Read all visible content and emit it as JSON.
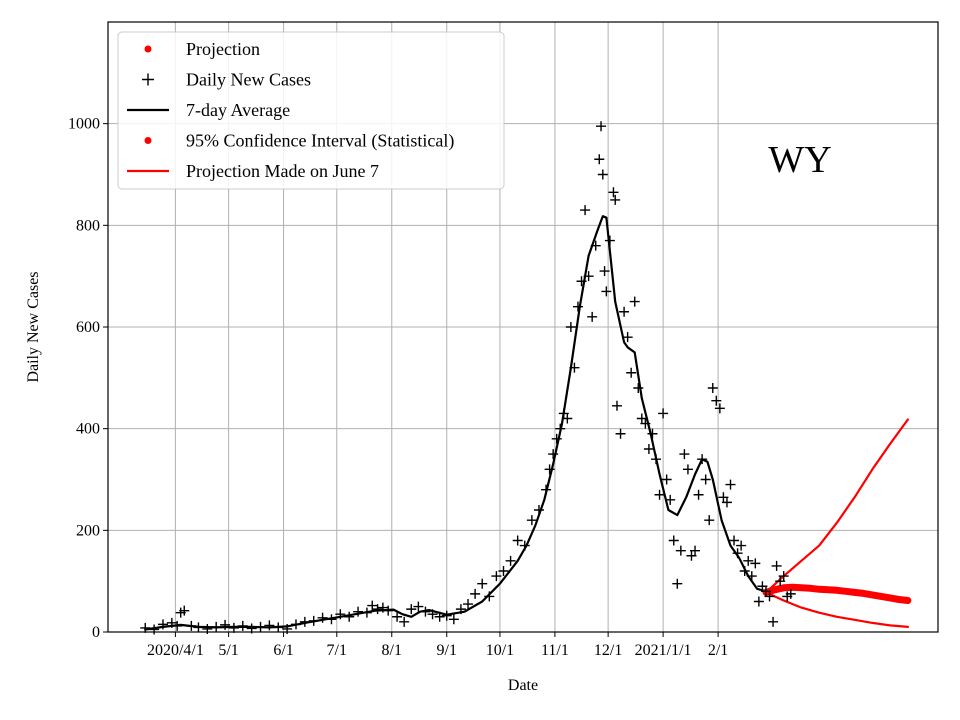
{
  "chart_data": {
    "type": "line",
    "state_label": "WY",
    "xlabel": "Date",
    "ylabel": "Daily New Cases",
    "ylim": [
      0,
      1200
    ],
    "yticks": [
      0,
      200,
      400,
      600,
      800,
      1000
    ],
    "x_domain_days": [
      -21,
      447
    ],
    "x_origin": "2020-03-15",
    "xticks": [
      {
        "day": 17,
        "label": "2020/4/1"
      },
      {
        "day": 47,
        "label": "5/1"
      },
      {
        "day": 78,
        "label": "6/1"
      },
      {
        "day": 108,
        "label": "7/1"
      },
      {
        "day": 139,
        "label": "8/1"
      },
      {
        "day": 170,
        "label": "9/1"
      },
      {
        "day": 200,
        "label": "10/1"
      },
      {
        "day": 231,
        "label": "11/1"
      },
      {
        "day": 261,
        "label": "12/1"
      },
      {
        "day": 292,
        "label": "2021/1/1"
      },
      {
        "day": 323,
        "label": "2/1"
      }
    ],
    "grid": true,
    "legend_position": "upper-left",
    "legend": [
      {
        "label": "Projection",
        "marker": "dot",
        "color": "#ff0000"
      },
      {
        "label": "Daily New Cases",
        "marker": "plus",
        "color": "#000000"
      },
      {
        "label": "7-day Average",
        "marker": "line",
        "color": "#000000"
      },
      {
        "label": "95% Confidence Interval (Statistical)",
        "marker": "dot",
        "color": "#ff0000"
      },
      {
        "label": "Projection Made on June 7",
        "marker": "line",
        "color": "#ff0000"
      }
    ],
    "series": [
      {
        "name": "7-day Average",
        "color": "#000000",
        "points": [
          [
            0,
            5
          ],
          [
            10,
            10
          ],
          [
            20,
            14
          ],
          [
            30,
            10
          ],
          [
            40,
            9
          ],
          [
            50,
            10
          ],
          [
            60,
            10
          ],
          [
            70,
            9
          ],
          [
            80,
            11
          ],
          [
            90,
            18
          ],
          [
            100,
            24
          ],
          [
            110,
            30
          ],
          [
            120,
            36
          ],
          [
            130,
            42
          ],
          [
            140,
            44
          ],
          [
            145,
            35
          ],
          [
            150,
            30
          ],
          [
            155,
            40
          ],
          [
            160,
            43
          ],
          [
            170,
            34
          ],
          [
            180,
            40
          ],
          [
            190,
            60
          ],
          [
            200,
            95
          ],
          [
            210,
            140
          ],
          [
            215,
            170
          ],
          [
            220,
            210
          ],
          [
            225,
            260
          ],
          [
            230,
            330
          ],
          [
            235,
            410
          ],
          [
            240,
            520
          ],
          [
            245,
            640
          ],
          [
            250,
            740
          ],
          [
            255,
            790
          ],
          [
            258,
            818
          ],
          [
            260,
            815
          ],
          [
            265,
            650
          ],
          [
            270,
            570
          ],
          [
            272,
            560
          ],
          [
            276,
            550
          ],
          [
            280,
            460
          ],
          [
            285,
            390
          ],
          [
            290,
            310
          ],
          [
            295,
            240
          ],
          [
            300,
            230
          ],
          [
            305,
            265
          ],
          [
            310,
            310
          ],
          [
            314,
            340
          ],
          [
            317,
            335
          ],
          [
            320,
            300
          ],
          [
            325,
            220
          ],
          [
            330,
            170
          ],
          [
            335,
            145
          ],
          [
            340,
            110
          ],
          [
            345,
            85
          ],
          [
            350,
            80
          ]
        ]
      },
      {
        "name": "Projection",
        "color": "#ff0000",
        "points": [
          [
            350,
            78
          ],
          [
            355,
            83
          ],
          [
            360,
            87
          ],
          [
            365,
            88
          ],
          [
            370,
            87
          ],
          [
            375,
            86
          ],
          [
            380,
            84
          ],
          [
            385,
            83
          ],
          [
            390,
            82
          ],
          [
            395,
            80
          ],
          [
            400,
            78
          ],
          [
            405,
            76
          ],
          [
            410,
            73
          ],
          [
            415,
            70
          ],
          [
            420,
            67
          ],
          [
            425,
            64
          ],
          [
            430,
            62
          ]
        ]
      },
      {
        "name": "Projection Made on June 7 (upper)",
        "color": "#ff0000",
        "points": [
          [
            350,
            78
          ],
          [
            360,
            110
          ],
          [
            370,
            140
          ],
          [
            380,
            170
          ],
          [
            390,
            215
          ],
          [
            400,
            265
          ],
          [
            410,
            320
          ],
          [
            420,
            370
          ],
          [
            430,
            418
          ]
        ]
      },
      {
        "name": "Projection Made on June 7 (lower)",
        "color": "#ff0000",
        "points": [
          [
            350,
            78
          ],
          [
            360,
            62
          ],
          [
            370,
            48
          ],
          [
            380,
            38
          ],
          [
            390,
            30
          ],
          [
            400,
            24
          ],
          [
            410,
            18
          ],
          [
            420,
            13
          ],
          [
            430,
            10
          ]
        ]
      }
    ],
    "daily_new_cases": [
      [
        0,
        8
      ],
      [
        5,
        5
      ],
      [
        10,
        15
      ],
      [
        15,
        18
      ],
      [
        18,
        12
      ],
      [
        20,
        38
      ],
      [
        22,
        42
      ],
      [
        26,
        12
      ],
      [
        30,
        9
      ],
      [
        35,
        6
      ],
      [
        40,
        10
      ],
      [
        45,
        14
      ],
      [
        50,
        8
      ],
      [
        55,
        12
      ],
      [
        60,
        7
      ],
      [
        65,
        10
      ],
      [
        70,
        13
      ],
      [
        75,
        9
      ],
      [
        80,
        6
      ],
      [
        85,
        15
      ],
      [
        90,
        20
      ],
      [
        95,
        22
      ],
      [
        100,
        28
      ],
      [
        105,
        25
      ],
      [
        110,
        35
      ],
      [
        115,
        30
      ],
      [
        120,
        40
      ],
      [
        125,
        38
      ],
      [
        128,
        52
      ],
      [
        131,
        45
      ],
      [
        134,
        48
      ],
      [
        137,
        42
      ],
      [
        142,
        30
      ],
      [
        146,
        20
      ],
      [
        150,
        45
      ],
      [
        154,
        50
      ],
      [
        158,
        40
      ],
      [
        162,
        35
      ],
      [
        166,
        30
      ],
      [
        170,
        32
      ],
      [
        174,
        25
      ],
      [
        178,
        45
      ],
      [
        182,
        55
      ],
      [
        186,
        75
      ],
      [
        190,
        95
      ],
      [
        194,
        70
      ],
      [
        198,
        110
      ],
      [
        202,
        120
      ],
      [
        206,
        140
      ],
      [
        210,
        180
      ],
      [
        214,
        170
      ],
      [
        218,
        220
      ],
      [
        222,
        240
      ],
      [
        226,
        280
      ],
      [
        228,
        320
      ],
      [
        230,
        350
      ],
      [
        232,
        380
      ],
      [
        234,
        400
      ],
      [
        236,
        430
      ],
      [
        238,
        420
      ],
      [
        240,
        600
      ],
      [
        242,
        520
      ],
      [
        244,
        640
      ],
      [
        246,
        690
      ],
      [
        248,
        830
      ],
      [
        250,
        700
      ],
      [
        252,
        620
      ],
      [
        254,
        760
      ],
      [
        256,
        930
      ],
      [
        257,
        995
      ],
      [
        258,
        900
      ],
      [
        259,
        710
      ],
      [
        260,
        670
      ],
      [
        262,
        770
      ],
      [
        264,
        865
      ],
      [
        265,
        850
      ],
      [
        266,
        445
      ],
      [
        268,
        390
      ],
      [
        270,
        630
      ],
      [
        272,
        580
      ],
      [
        274,
        510
      ],
      [
        276,
        650
      ],
      [
        278,
        480
      ],
      [
        280,
        420
      ],
      [
        282,
        410
      ],
      [
        284,
        360
      ],
      [
        286,
        390
      ],
      [
        288,
        340
      ],
      [
        290,
        270
      ],
      [
        292,
        430
      ],
      [
        294,
        300
      ],
      [
        296,
        260
      ],
      [
        298,
        180
      ],
      [
        300,
        95
      ],
      [
        302,
        160
      ],
      [
        304,
        350
      ],
      [
        306,
        320
      ],
      [
        308,
        150
      ],
      [
        310,
        160
      ],
      [
        312,
        270
      ],
      [
        314,
        340
      ],
      [
        316,
        300
      ],
      [
        318,
        220
      ],
      [
        320,
        480
      ],
      [
        322,
        455
      ],
      [
        324,
        440
      ],
      [
        326,
        265
      ],
      [
        328,
        255
      ],
      [
        330,
        290
      ],
      [
        332,
        180
      ],
      [
        334,
        155
      ],
      [
        336,
        170
      ],
      [
        338,
        120
      ],
      [
        340,
        140
      ],
      [
        342,
        110
      ],
      [
        344,
        135
      ],
      [
        346,
        60
      ],
      [
        348,
        90
      ],
      [
        350,
        80
      ],
      [
        352,
        70
      ],
      [
        354,
        20
      ],
      [
        356,
        130
      ],
      [
        358,
        100
      ],
      [
        360,
        110
      ],
      [
        362,
        70
      ],
      [
        364,
        75
      ]
    ]
  }
}
